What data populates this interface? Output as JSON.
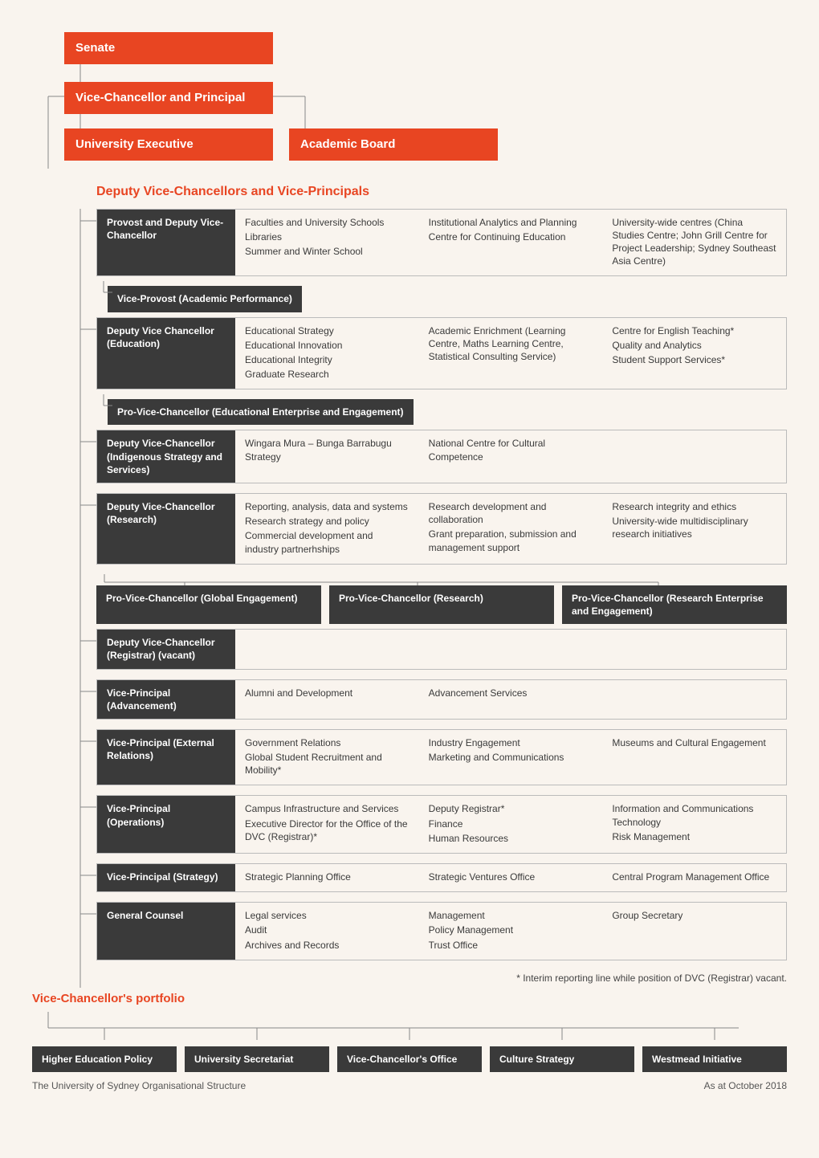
{
  "colors": {
    "orange": "#e84522",
    "dark": "#3a3a3a",
    "bg": "#f9f4ee",
    "line": "#888"
  },
  "top": {
    "senate": "Senate",
    "vc": "Vice-Chancellor and Principal",
    "ue": "University Executive",
    "ab": "Academic Board"
  },
  "section_title": "Deputy Vice-Chancellors and Vice-Principals",
  "rows": [
    {
      "title": "Provost and Deputy Vice-Chancellor",
      "cols": [
        [
          "Faculties and University Schools",
          "Libraries",
          "Summer and Winter School"
        ],
        [
          "Institutional Analytics and Planning",
          "Centre for Continuing Education"
        ],
        [
          "University-wide centres (China Studies Centre; John Grill Centre for Project Leadership; Sydney Southeast Asia Centre)"
        ]
      ],
      "sub": "Vice-Provost (Academic Performance)"
    },
    {
      "title": "Deputy Vice Chancellor (Education)",
      "cols": [
        [
          "Educational Strategy",
          "Educational Innovation",
          "Educational Integrity",
          "Graduate Research"
        ],
        [
          "Academic Enrichment (Learning Centre, Maths Learning Centre, Statistical Consulting Service)"
        ],
        [
          "Centre for English Teaching*",
          "Quality and Analytics",
          "Student Support Services*"
        ]
      ],
      "sub": "Pro-Vice-Chancellor (Educational Enterprise and Engagement)"
    },
    {
      "title": "Deputy Vice-Chancellor (Indigenous Strategy and Services)",
      "cols": [
        [
          "Wingara Mura – Bunga Barrabugu Strategy"
        ],
        [
          "National Centre for Cultural Competence"
        ],
        []
      ]
    },
    {
      "title": "Deputy Vice-Chancellor (Research)",
      "cols": [
        [
          "Reporting, analysis, data and systems",
          "Research strategy and policy",
          "Commercial development and industry partnerhships"
        ],
        [
          "Research development and collaboration",
          "Grant preparation, submission and management support"
        ],
        [
          "Research integrity and ethics",
          "University-wide multidisciplinary research initiatives"
        ]
      ],
      "pvc": [
        "Pro-Vice-Chancellor (Global Engagement)",
        "Pro-Vice-Chancellor (Research)",
        "Pro-Vice-Chancellor (Research Enterprise and Engagement)"
      ]
    },
    {
      "title": "Deputy Vice-Chancellor (Registrar) (vacant)",
      "cols": [
        [],
        [],
        []
      ]
    },
    {
      "title": "Vice-Principal (Advancement)",
      "cols": [
        [
          "Alumni and Development"
        ],
        [
          "Advancement Services"
        ],
        []
      ]
    },
    {
      "title": "Vice-Principal (External Relations)",
      "cols": [
        [
          "Government Relations",
          "Global Student Recruitment and Mobility*"
        ],
        [
          "Industry Engagement",
          "Marketing and Communications"
        ],
        [
          "Museums and Cultural Engagement"
        ]
      ]
    },
    {
      "title": "Vice-Principal (Operations)",
      "cols": [
        [
          "Campus Infrastructure and Services",
          "Executive Director for the Office of the DVC (Registrar)*"
        ],
        [
          "Deputy Registrar*",
          "Finance",
          "Human Resources"
        ],
        [
          "Information and Communications Technology",
          "Risk Management"
        ]
      ]
    },
    {
      "title": "Vice-Principal (Strategy)",
      "cols": [
        [
          "Strategic Planning Office"
        ],
        [
          "Strategic Ventures Office"
        ],
        [
          "Central Program Management Office"
        ]
      ]
    },
    {
      "title": "General Counsel",
      "cols": [
        [
          "Legal services",
          "Audit",
          "Archives and Records"
        ],
        [
          "Management",
          "Policy Management",
          "Trust Office"
        ],
        [
          "Group Secretary"
        ]
      ]
    }
  ],
  "note": "* Interim reporting line while position of DVC (Registrar) vacant.",
  "vc_portfolio_title": "Vice-Chancellor's portfolio",
  "portfolio": [
    "Higher Education Policy",
    "University Secretariat",
    "Vice-Chancellor's Office",
    "Culture Strategy",
    "Westmead Initiative"
  ],
  "footer_left": "The University of Sydney Organisational Structure",
  "footer_right": "As at October 2018"
}
